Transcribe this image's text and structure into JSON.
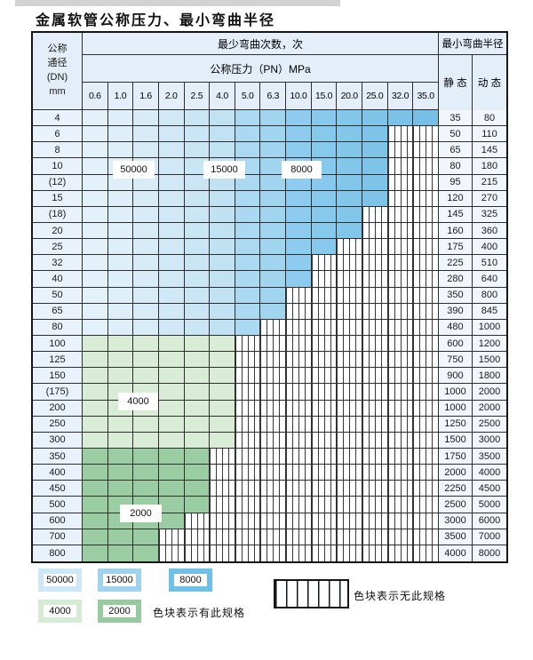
{
  "title": "金属软管公称压力、最小弯曲半径",
  "table": {
    "header": {
      "dn_lines": [
        "公称",
        "通径",
        "(DN)",
        "mm"
      ],
      "bend_cycles_label": "最少弯曲次数，次",
      "pressure_label": "公称压力（PN）MPa",
      "radius_label": "最小弯曲半径",
      "static_label": "静 态",
      "dynamic_label": "动 态"
    }
  },
  "cycle_tags": [
    "50000",
    "15000",
    "8000",
    "4000",
    "2000"
  ],
  "legend": {
    "items": [
      {
        "label": "50000",
        "color": "#cde7f7"
      },
      {
        "label": "15000",
        "color": "#9ed3ef"
      },
      {
        "label": "8000",
        "color": "#6fc0e9"
      },
      {
        "label": "4000",
        "color": "#d6ebd3"
      },
      {
        "label": "2000",
        "color": "#96cb9e"
      }
    ],
    "has_spec_text": "色块表示有此规格",
    "no_spec_text": "色块表示无此规格"
  },
  "colors": {
    "blue_zones": {
      "z50000": [
        "#e3f1fb",
        "#deeffa",
        "#d8ecf8",
        "#d1e9f7",
        "#cae6f5",
        "#c1e2f3"
      ],
      "z15000": [
        "#abd9f1",
        "#a0d4ef"
      ],
      "z8000": [
        "#8dccee",
        "#87c9ec",
        "#82c6ea",
        "#7ec4e9",
        "#7ac2e8",
        "#76c0e7"
      ]
    },
    "green_4000": "#d9ecd6",
    "green_2000": "#9bcda2",
    "hatch_line": "#383838",
    "grid_line": "#2e2e2e"
  },
  "chart_data": {
    "type": "table",
    "title": "金属软管公称压力、最小弯曲半径",
    "pn_mpa": [
      0.6,
      1.0,
      1.6,
      2.0,
      2.5,
      4.0,
      5.0,
      6.3,
      10.0,
      15.0,
      20.0,
      25.0,
      32.0,
      35.0
    ],
    "cycles_by_pn_zone_blue_rows": {
      "0.6-4.0": 50000,
      "5.0-6.3": 15000,
      "10.0-35.0": 8000
    },
    "cycles_green_rows": {
      "DN100-300": 4000,
      "DN350-800": 2000
    },
    "legend_note": "色块表示有此规格 / 色块表示无此规格",
    "rows": [
      {
        "dn": "4",
        "max_pn": 35.0,
        "static": "35",
        "dynamic": "80",
        "palette": "blue"
      },
      {
        "dn": "6",
        "max_pn": 25.0,
        "static": "50",
        "dynamic": "110",
        "palette": "blue"
      },
      {
        "dn": "8",
        "max_pn": 25.0,
        "static": "65",
        "dynamic": "145",
        "palette": "blue"
      },
      {
        "dn": "10",
        "max_pn": 25.0,
        "static": "80",
        "dynamic": "180",
        "palette": "blue"
      },
      {
        "dn": "(12)",
        "max_pn": 25.0,
        "static": "95",
        "dynamic": "215",
        "palette": "blue"
      },
      {
        "dn": "15",
        "max_pn": 25.0,
        "static": "120",
        "dynamic": "270",
        "palette": "blue"
      },
      {
        "dn": "(18)",
        "max_pn": 20.0,
        "static": "145",
        "dynamic": "325",
        "palette": "blue"
      },
      {
        "dn": "20",
        "max_pn": 20.0,
        "static": "160",
        "dynamic": "360",
        "palette": "blue"
      },
      {
        "dn": "25",
        "max_pn": 15.0,
        "static": "175",
        "dynamic": "400",
        "palette": "blue"
      },
      {
        "dn": "32",
        "max_pn": 10.0,
        "static": "225",
        "dynamic": "510",
        "palette": "blue"
      },
      {
        "dn": "40",
        "max_pn": 10.0,
        "static": "280",
        "dynamic": "640",
        "palette": "blue"
      },
      {
        "dn": "50",
        "max_pn": 6.3,
        "static": "350",
        "dynamic": "800",
        "palette": "blue"
      },
      {
        "dn": "65",
        "max_pn": 6.3,
        "static": "390",
        "dynamic": "845",
        "palette": "blue"
      },
      {
        "dn": "80",
        "max_pn": 5.0,
        "static": "480",
        "dynamic": "1000",
        "palette": "blue"
      },
      {
        "dn": "100",
        "max_pn": 4.0,
        "static": "600",
        "dynamic": "1200",
        "palette": "g4"
      },
      {
        "dn": "125",
        "max_pn": 4.0,
        "static": "750",
        "dynamic": "1500",
        "palette": "g4"
      },
      {
        "dn": "150",
        "max_pn": 4.0,
        "static": "900",
        "dynamic": "1800",
        "palette": "g4"
      },
      {
        "dn": "(175)",
        "max_pn": 4.0,
        "static": "1000",
        "dynamic": "2000",
        "palette": "g4"
      },
      {
        "dn": "200",
        "max_pn": 4.0,
        "static": "1000",
        "dynamic": "2000",
        "palette": "g4"
      },
      {
        "dn": "250",
        "max_pn": 4.0,
        "static": "1250",
        "dynamic": "2500",
        "palette": "g4"
      },
      {
        "dn": "300",
        "max_pn": 4.0,
        "static": "1500",
        "dynamic": "3000",
        "palette": "g4"
      },
      {
        "dn": "350",
        "max_pn": 2.5,
        "static": "1750",
        "dynamic": "3500",
        "palette": "g2"
      },
      {
        "dn": "400",
        "max_pn": 2.5,
        "static": "2000",
        "dynamic": "4000",
        "palette": "g2"
      },
      {
        "dn": "450",
        "max_pn": 2.5,
        "static": "2250",
        "dynamic": "4500",
        "palette": "g2"
      },
      {
        "dn": "500",
        "max_pn": 2.5,
        "static": "2500",
        "dynamic": "5000",
        "palette": "g2"
      },
      {
        "dn": "600",
        "max_pn": 2.0,
        "static": "3000",
        "dynamic": "6000",
        "palette": "g2"
      },
      {
        "dn": "700",
        "max_pn": 1.6,
        "static": "3500",
        "dynamic": "7000",
        "palette": "g2"
      },
      {
        "dn": "800",
        "max_pn": 1.6,
        "static": "4000",
        "dynamic": "8000",
        "palette": "g2"
      }
    ]
  }
}
